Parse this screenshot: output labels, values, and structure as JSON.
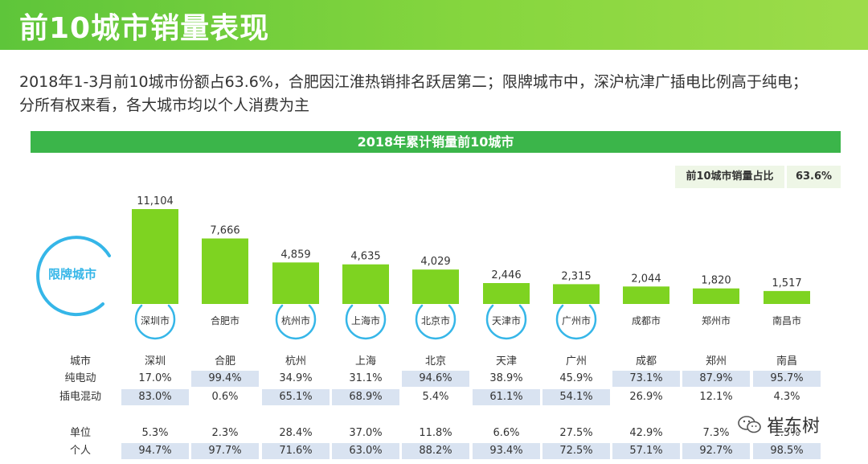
{
  "page": {
    "title": "前10城市销量表现",
    "summary_line1": "2018年1-3月前10城市份额占63.6%，合肥因江淮热销排名跃居第二；限牌城市中，深沪杭津广插电比例高于纯电；",
    "summary_line2": "分所有权来看，各大城市均以个人消费为主",
    "band_title": "2018年累计销量前10城市",
    "share_label": "前10城市销量占比",
    "share_value": "63.6%",
    "restricted_label": "限牌城市",
    "watermark": "崔东树",
    "colors": {
      "bar": "#7ed321",
      "header": "#3bb54a",
      "ring": "#35b6e8",
      "highlight": "#d9e3f1"
    }
  },
  "chart_data": {
    "type": "bar",
    "title": "2018年累计销量前10城市",
    "categories": [
      "深圳市",
      "合肥市",
      "杭州市",
      "上海市",
      "北京市",
      "天津市",
      "广州市",
      "成都市",
      "郑州市",
      "南昌市"
    ],
    "values": [
      11104,
      7666,
      4859,
      4635,
      4029,
      2446,
      2315,
      2044,
      1820,
      1517
    ],
    "value_labels": [
      "11,104",
      "7,666",
      "4,859",
      "4,635",
      "4,029",
      "2,446",
      "2,315",
      "2,044",
      "1,820",
      "1,517"
    ],
    "restricted_cities": [
      "深圳市",
      "杭州市",
      "上海市",
      "北京市",
      "天津市",
      "广州市"
    ],
    "ylim": [
      0,
      11104
    ]
  },
  "table": {
    "headers": {
      "city": "城市",
      "bev": "纯电动",
      "phev": "插电混动",
      "unit": "单位",
      "personal": "个人"
    },
    "cities": [
      "深圳",
      "合肥",
      "杭州",
      "上海",
      "北京",
      "天津",
      "广州",
      "成都",
      "郑州",
      "南昌"
    ],
    "bev": [
      "17.0%",
      "99.4%",
      "34.9%",
      "31.1%",
      "94.6%",
      "38.9%",
      "45.9%",
      "73.1%",
      "87.9%",
      "95.7%"
    ],
    "phev": [
      "83.0%",
      "0.6%",
      "65.1%",
      "68.9%",
      "5.4%",
      "61.1%",
      "54.1%",
      "26.9%",
      "12.1%",
      "4.3%"
    ],
    "unit": [
      "5.3%",
      "2.3%",
      "28.4%",
      "37.0%",
      "11.8%",
      "6.6%",
      "27.5%",
      "42.9%",
      "7.3%",
      "1.5%"
    ],
    "personal": [
      "94.7%",
      "97.7%",
      "71.6%",
      "63.0%",
      "88.2%",
      "93.4%",
      "72.5%",
      "57.1%",
      "92.7%",
      "98.5%"
    ]
  }
}
